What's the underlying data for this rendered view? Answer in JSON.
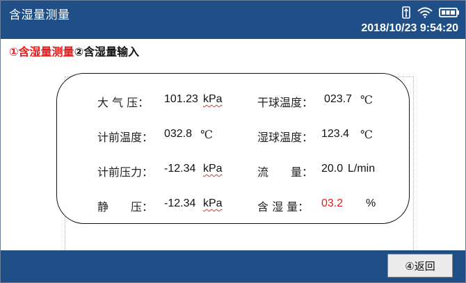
{
  "header": {
    "title": "含湿量测量",
    "datetime": "2018/10/23 9:54:20",
    "status_icons": [
      "usb-icon",
      "wifi-icon",
      "battery-icon"
    ]
  },
  "steps": {
    "step1": "①含湿量测量",
    "step2": "②含湿量输入"
  },
  "readings": {
    "atm_pressure": {
      "label": "大 气 压：",
      "value": "101.23",
      "unit": "kPa"
    },
    "dry_bulb": {
      "label": "干球温度：",
      "value": "023.7",
      "unit": "℃"
    },
    "meter_temp": {
      "label": "计前温度：",
      "value": "032.8",
      "unit": "℃"
    },
    "wet_bulb": {
      "label": "湿球温度：",
      "value": "123.4",
      "unit": "℃"
    },
    "meter_pressure": {
      "label": "计前压力：",
      "value": "-12.34",
      "unit": "kPa"
    },
    "flow": {
      "label": "流　　量：",
      "value": "20.0",
      "unit": "L/min"
    },
    "static_pressure": {
      "label": "静　　压：",
      "value": "-12.34",
      "unit": "kPa"
    },
    "moisture": {
      "label": "含 湿 量：",
      "value": "03.2",
      "unit": "%"
    }
  },
  "footer": {
    "back_label": "④返回"
  },
  "colors": {
    "header_bg": "#1f4f86",
    "accent_red": "#e31b1b"
  }
}
